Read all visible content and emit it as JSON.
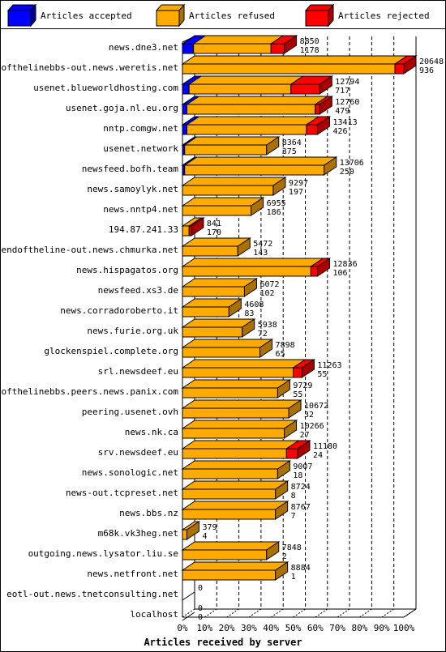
{
  "chart_data": {
    "type": "bar",
    "orientation": "horizontal",
    "stacked": true,
    "title": "",
    "xlabel": "Articles received by server",
    "ylabel": "",
    "xlim": [
      0,
      100
    ],
    "x_tick_labels": [
      "0%",
      "10%",
      "20%",
      "30%",
      "40%",
      "50%",
      "60%",
      "70%",
      "80%",
      "90%",
      "100%"
    ],
    "grid": true,
    "legend_position": "top",
    "series": [
      {
        "name": "Articles accepted",
        "color": "#0000ff",
        "side_color": "#000099"
      },
      {
        "name": "Articles refused",
        "color": "#ffaa00",
        "side_color": "#aa7100"
      },
      {
        "name": "Articles rejected",
        "color": "#ff0000",
        "side_color": "#aa0000"
      }
    ],
    "rows": [
      {
        "server": "news.dne3.net",
        "accepted_pct": 5,
        "refused_pct": 35,
        "rejected_pct": 6,
        "label_top": "8850",
        "label_bottom": "1178"
      },
      {
        "server": "endofthelinebbs-out.news.weretis.net",
        "accepted_pct": 0,
        "refused_pct": 96,
        "rejected_pct": 4,
        "label_top": "20648",
        "label_bottom": "936"
      },
      {
        "server": "usenet.blueworldhosting.com",
        "accepted_pct": 3,
        "refused_pct": 46,
        "rejected_pct": 13,
        "label_top": "12794",
        "label_bottom": "717"
      },
      {
        "server": "usenet.goja.nl.eu.org",
        "accepted_pct": 2,
        "refused_pct": 58,
        "rejected_pct": 2,
        "label_top": "12760",
        "label_bottom": "479"
      },
      {
        "server": "nntp.comgw.net",
        "accepted_pct": 2,
        "refused_pct": 54,
        "rejected_pct": 5,
        "label_top": "13413",
        "label_bottom": "426"
      },
      {
        "server": "usenet.network",
        "accepted_pct": 1,
        "refused_pct": 37,
        "rejected_pct": 0,
        "label_top": "8364",
        "label_bottom": "375"
      },
      {
        "server": "newsfeed.bofh.team",
        "accepted_pct": 1,
        "refused_pct": 63,
        "rejected_pct": 0,
        "label_top": "13706",
        "label_bottom": "250"
      },
      {
        "server": "news.samoylyk.net",
        "accepted_pct": 0,
        "refused_pct": 41,
        "rejected_pct": 0,
        "label_top": "9297",
        "label_bottom": "197"
      },
      {
        "server": "news.nntp4.net",
        "accepted_pct": 0,
        "refused_pct": 31,
        "rejected_pct": 0,
        "label_top": "6955",
        "label_bottom": "186"
      },
      {
        "server": "194.87.241.33",
        "accepted_pct": 0,
        "refused_pct": 3,
        "rejected_pct": 1,
        "label_top": "841",
        "label_bottom": "170"
      },
      {
        "server": "endoftheline-out.news.chmurka.net",
        "accepted_pct": 0,
        "refused_pct": 25,
        "rejected_pct": 0,
        "label_top": "5472",
        "label_bottom": "143"
      },
      {
        "server": "news.hispagatos.org",
        "accepted_pct": 0,
        "refused_pct": 58,
        "rejected_pct": 3,
        "label_top": "12836",
        "label_bottom": "106"
      },
      {
        "server": "newsfeed.xs3.de",
        "accepted_pct": 0,
        "refused_pct": 28,
        "rejected_pct": 0,
        "label_top": "6072",
        "label_bottom": "102"
      },
      {
        "server": "news.corradoroberto.it",
        "accepted_pct": 0,
        "refused_pct": 21,
        "rejected_pct": 0,
        "label_top": "4608",
        "label_bottom": "83"
      },
      {
        "server": "news.furie.org.uk",
        "accepted_pct": 0,
        "refused_pct": 27,
        "rejected_pct": 0,
        "label_top": "5938",
        "label_bottom": "72"
      },
      {
        "server": "glockenspiel.complete.org",
        "accepted_pct": 0,
        "refused_pct": 35,
        "rejected_pct": 0,
        "label_top": "7898",
        "label_bottom": "65"
      },
      {
        "server": "srl.newsdeef.eu",
        "accepted_pct": 0,
        "refused_pct": 50,
        "rejected_pct": 4,
        "label_top": "11263",
        "label_bottom": "55"
      },
      {
        "server": "endofthelinebbs.peers.news.panix.com",
        "accepted_pct": 0,
        "refused_pct": 43,
        "rejected_pct": 0,
        "label_top": "9729",
        "label_bottom": "55"
      },
      {
        "server": "peering.usenet.ovh",
        "accepted_pct": 0,
        "refused_pct": 48,
        "rejected_pct": 0,
        "label_top": "10672",
        "label_bottom": "32"
      },
      {
        "server": "news.nk.ca",
        "accepted_pct": 0,
        "refused_pct": 46,
        "rejected_pct": 0,
        "label_top": "10266",
        "label_bottom": "27"
      },
      {
        "server": "srv.newsdeef.eu",
        "accepted_pct": 0,
        "refused_pct": 47,
        "rejected_pct": 5,
        "label_top": "11180",
        "label_bottom": "24"
      },
      {
        "server": "news.sonologic.net",
        "accepted_pct": 0,
        "refused_pct": 43,
        "rejected_pct": 0,
        "label_top": "9007",
        "label_bottom": "18"
      },
      {
        "server": "news-out.tcpreset.net",
        "accepted_pct": 0,
        "refused_pct": 42,
        "rejected_pct": 0,
        "label_top": "8724",
        "label_bottom": "8"
      },
      {
        "server": "news.bbs.nz",
        "accepted_pct": 0,
        "refused_pct": 42,
        "rejected_pct": 0,
        "label_top": "8767",
        "label_bottom": "7"
      },
      {
        "server": "m68k.vk3heg.net",
        "accepted_pct": 0,
        "refused_pct": 2,
        "rejected_pct": 0,
        "label_top": "379",
        "label_bottom": "4"
      },
      {
        "server": "outgoing.news.lysator.liu.se",
        "accepted_pct": 0,
        "refused_pct": 38,
        "rejected_pct": 0,
        "label_top": "7848",
        "label_bottom": "2"
      },
      {
        "server": "news.netfront.net",
        "accepted_pct": 0,
        "refused_pct": 42,
        "rejected_pct": 0,
        "label_top": "8884",
        "label_bottom": "1"
      },
      {
        "server": "eotl-out.news.tnetconsulting.net",
        "accepted_pct": 0,
        "refused_pct": 0,
        "rejected_pct": 0,
        "label_top": "0",
        "label_bottom": ""
      },
      {
        "server": "localhost",
        "accepted_pct": 0,
        "refused_pct": 0,
        "rejected_pct": 0,
        "label_top": "0",
        "label_bottom": "0"
      }
    ]
  }
}
